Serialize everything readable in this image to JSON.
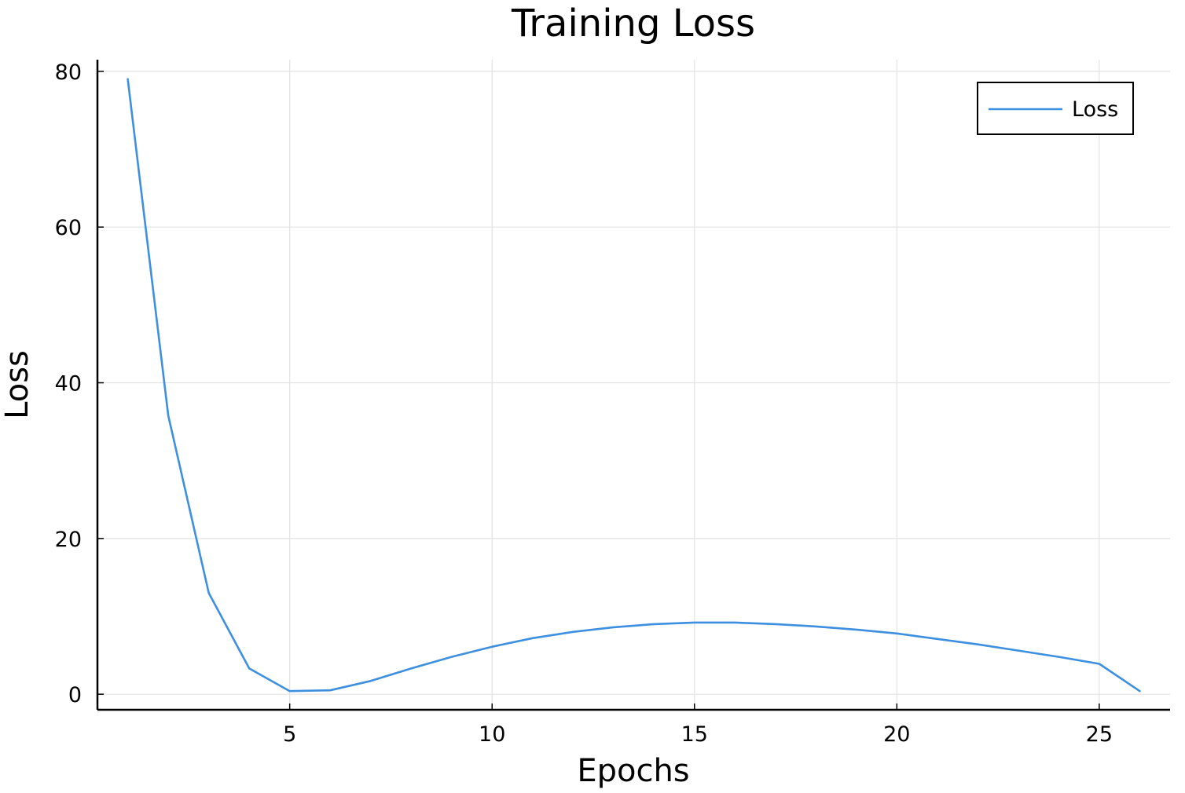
{
  "chart_data": {
    "type": "line",
    "title": "Training Loss",
    "xlabel": "Epochs",
    "ylabel": "Loss",
    "xlim": [
      0.25,
      26.75
    ],
    "ylim": [
      -2,
      81.5
    ],
    "xticks": [
      5,
      10,
      15,
      20,
      25
    ],
    "xtick_labels": [
      "5",
      "10",
      "15",
      "20",
      "25"
    ],
    "yticks": [
      0,
      20,
      40,
      60,
      80
    ],
    "ytick_labels": [
      "0",
      "20",
      "40",
      "60",
      "80"
    ],
    "grid": true,
    "legend_position": "top-right",
    "series": [
      {
        "name": "Loss",
        "color": "#3d8fe0",
        "x": [
          1,
          2,
          3,
          4,
          5,
          6,
          7,
          8,
          9,
          10,
          11,
          12,
          13,
          14,
          15,
          16,
          17,
          18,
          19,
          20,
          21,
          22,
          23,
          24,
          25,
          26
        ],
        "y": [
          79,
          35.8,
          13,
          3.3,
          0.4,
          0.5,
          1.7,
          3.3,
          4.8,
          6.1,
          7.2,
          8.0,
          8.6,
          9.0,
          9.2,
          9.2,
          9.0,
          8.7,
          8.3,
          7.8,
          7.1,
          6.4,
          5.6,
          4.8,
          3.9,
          0.4
        ]
      }
    ]
  }
}
